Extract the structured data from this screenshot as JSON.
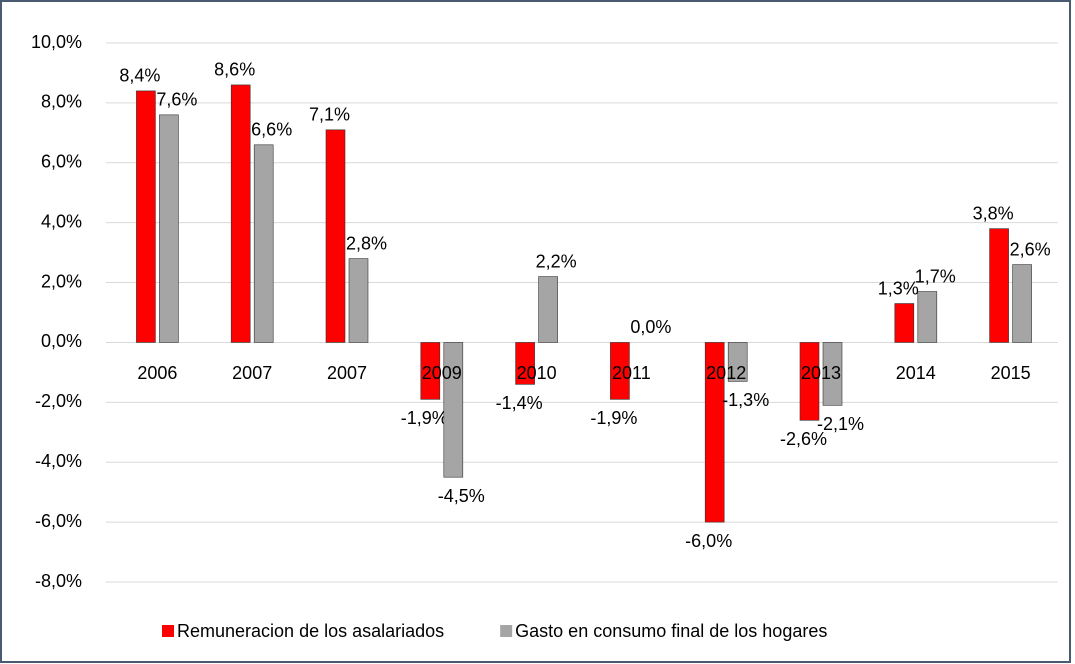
{
  "chart_data": {
    "type": "bar",
    "categories": [
      "2006",
      "2007",
      "2007",
      "2009",
      "2010",
      "2011",
      "2012",
      "2013",
      "2014",
      "2015"
    ],
    "series": [
      {
        "name": "Remuneracion de los asalariados",
        "color": "#ff0000",
        "values": [
          8.4,
          8.6,
          7.1,
          -1.9,
          -1.4,
          -1.9,
          -6.0,
          -2.6,
          1.3,
          3.8
        ],
        "value_labels": [
          "8,4%",
          "8,6%",
          "7,1%",
          "-1,9%",
          "-1,4%",
          "-1,9%",
          "-6,0%",
          "-2,6%",
          "1,3%",
          "3,8%"
        ]
      },
      {
        "name": "Gasto en consumo final de los hogares",
        "color": "#a5a5a5",
        "values": [
          7.6,
          6.6,
          2.8,
          -4.5,
          2.2,
          0.0,
          -1.3,
          -2.1,
          1.7,
          2.6
        ],
        "value_labels": [
          "7,6%",
          "6,6%",
          "2,8%",
          "-4,5%",
          "2,2%",
          "0,0%",
          "-1,3%",
          "-2,1%",
          "1,7%",
          "2,6%"
        ]
      }
    ],
    "ylim": [
      -8,
      10
    ],
    "yticks": [
      {
        "value": -8,
        "label": "-8,0%"
      },
      {
        "value": -6,
        "label": "-6,0%"
      },
      {
        "value": -4,
        "label": "-4,0%"
      },
      {
        "value": -2,
        "label": "-2,0%"
      },
      {
        "value": 0,
        "label": "0,0%"
      },
      {
        "value": 2,
        "label": "2,0%"
      },
      {
        "value": 4,
        "label": "4,0%"
      },
      {
        "value": 6,
        "label": "6,0%"
      },
      {
        "value": 8,
        "label": "8,0%"
      },
      {
        "value": 10,
        "label": "10,0%"
      }
    ],
    "grid": true,
    "legend": "bottom"
  }
}
